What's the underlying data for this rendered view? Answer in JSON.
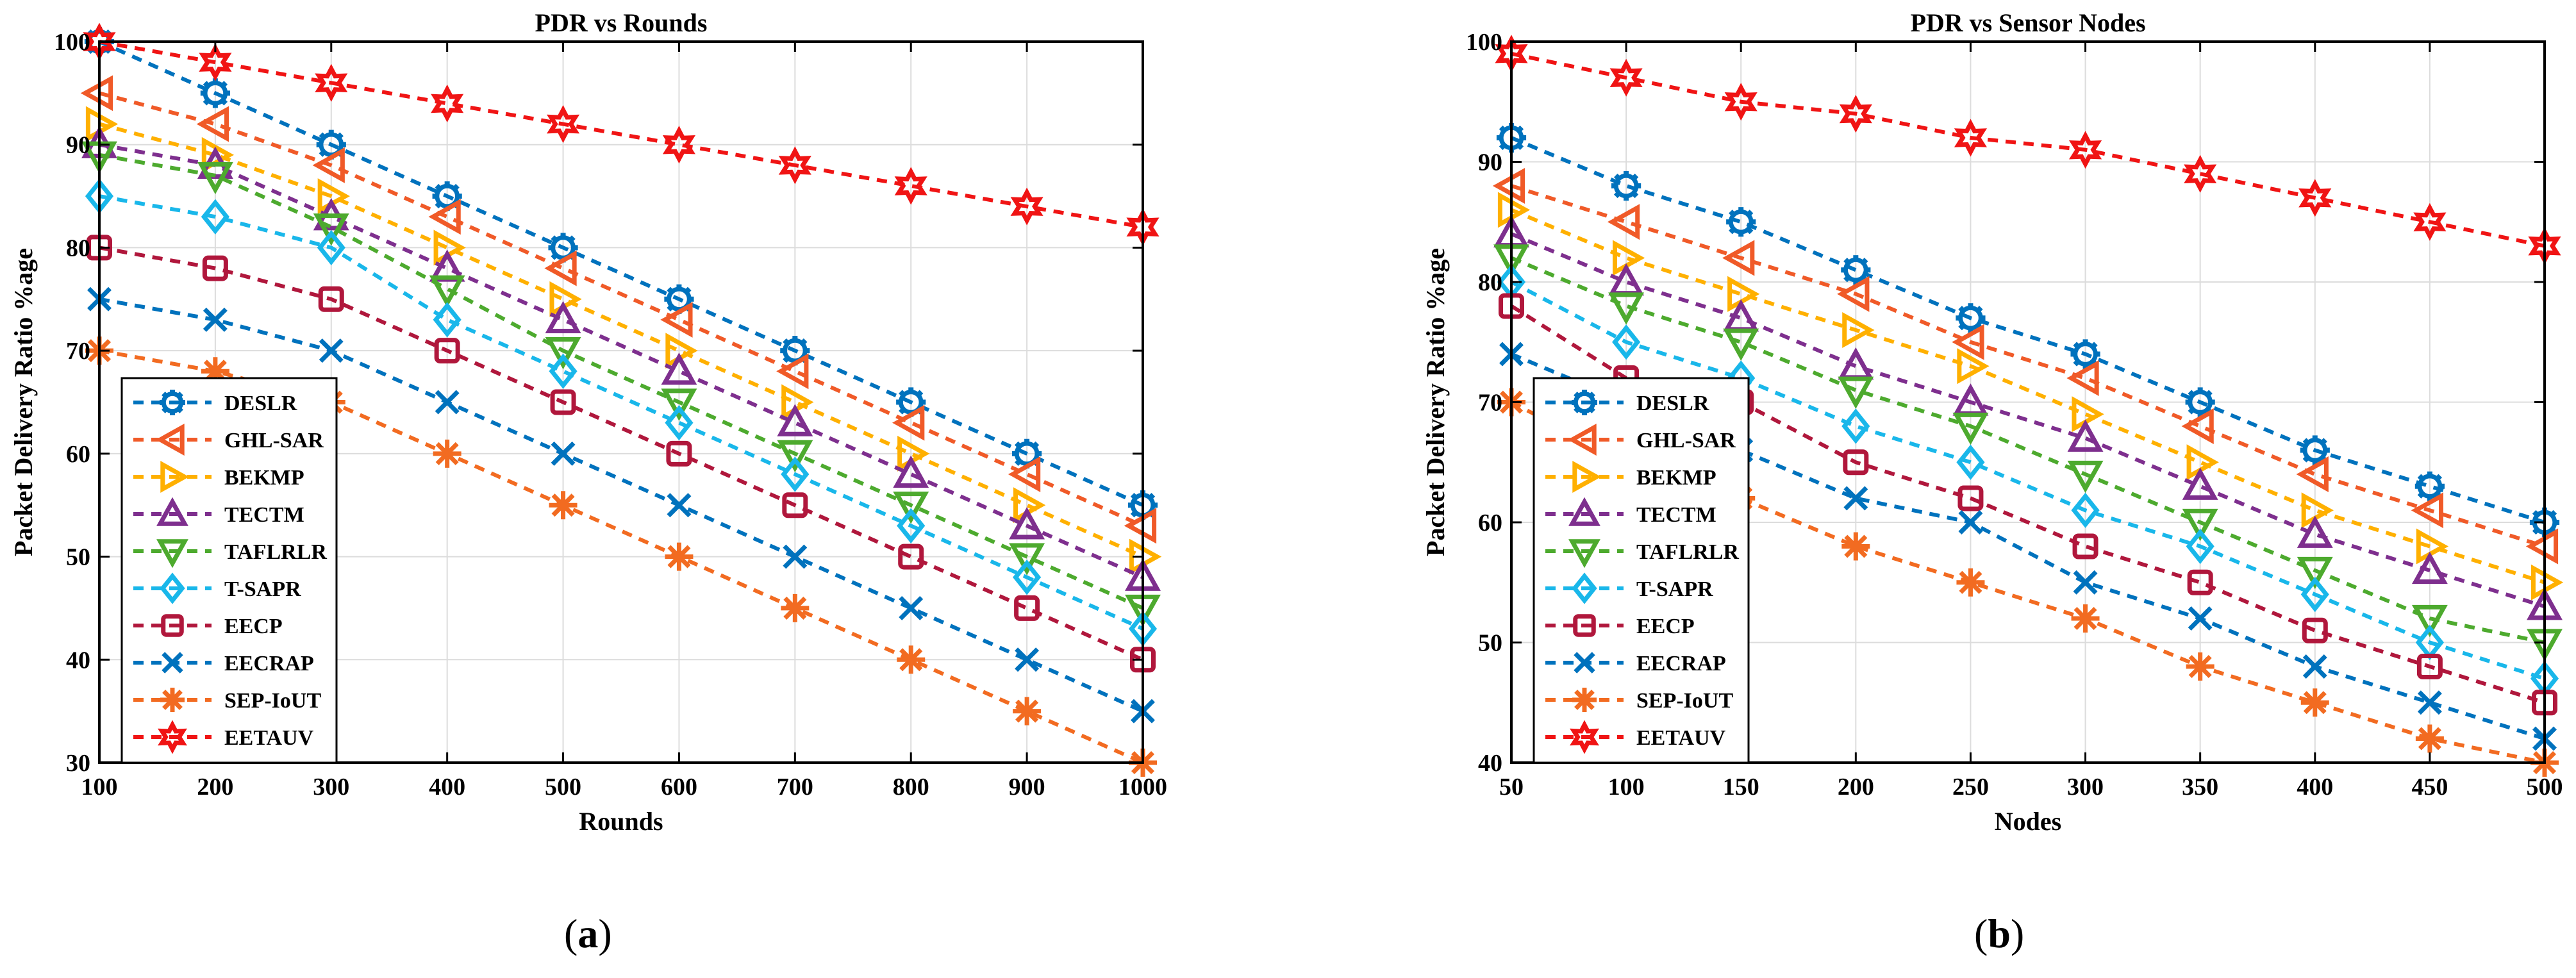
{
  "chart_data": [
    {
      "type": "line",
      "id": "a",
      "title": "PDR vs Rounds",
      "xlabel": "Rounds",
      "ylabel": "Packet Delivery Ratio %age",
      "xlim": [
        100,
        1000
      ],
      "ylim": [
        30,
        100
      ],
      "xticks": [
        100,
        200,
        300,
        400,
        500,
        600,
        700,
        800,
        900,
        1000
      ],
      "yticks": [
        30,
        40,
        50,
        60,
        70,
        80,
        90,
        100
      ],
      "grid": true,
      "legend_position": "bottom-left",
      "caption_letter": "a",
      "x": [
        100,
        200,
        300,
        400,
        500,
        600,
        700,
        800,
        900,
        1000
      ],
      "series": [
        {
          "name": "DESLR",
          "color": "#0072BD",
          "marker": "gear",
          "values": [
            100,
            95,
            90,
            85,
            80,
            75,
            70,
            65,
            60,
            55
          ]
        },
        {
          "name": "GHL-SAR",
          "color": "#F05A28",
          "marker": "tri-left",
          "values": [
            95,
            92,
            88,
            83,
            78,
            73,
            68,
            63,
            58,
            53
          ]
        },
        {
          "name": "BEKMP",
          "color": "#FFB000",
          "marker": "tri-right",
          "values": [
            92,
            89,
            85,
            80,
            75,
            70,
            65,
            60,
            55,
            50
          ]
        },
        {
          "name": "TECTM",
          "color": "#7E2F8E",
          "marker": "tri-up",
          "values": [
            90,
            88,
            83,
            78,
            73,
            68,
            63,
            58,
            53,
            48
          ]
        },
        {
          "name": "TAFLRLR",
          "color": "#4DAA2E",
          "marker": "tri-down",
          "values": [
            89,
            87,
            82,
            76,
            70,
            65,
            60,
            55,
            50,
            45
          ]
        },
        {
          "name": "T-SAPR",
          "color": "#19B7EA",
          "marker": "diamond",
          "values": [
            85,
            83,
            80,
            73,
            68,
            63,
            58,
            53,
            48,
            43
          ]
        },
        {
          "name": "EECP",
          "color": "#B0173C",
          "marker": "square",
          "values": [
            80,
            78,
            75,
            70,
            65,
            60,
            55,
            50,
            45,
            40
          ]
        },
        {
          "name": "EECRAP",
          "color": "#0072BD",
          "marker": "x",
          "values": [
            75,
            73,
            70,
            65,
            60,
            55,
            50,
            45,
            40,
            35
          ]
        },
        {
          "name": "SEP-IoUT",
          "color": "#F26B21",
          "marker": "asterisk",
          "values": [
            70,
            68,
            65,
            60,
            55,
            50,
            45,
            40,
            35,
            30
          ]
        },
        {
          "name": "EETAUV",
          "color": "#F01414",
          "marker": "star",
          "values": [
            100,
            98,
            96,
            94,
            92,
            90,
            88,
            86,
            84,
            82
          ]
        }
      ]
    },
    {
      "type": "line",
      "id": "b",
      "title": "PDR vs Sensor Nodes",
      "xlabel": "Nodes",
      "ylabel": "Packet Delivery Ratio %age",
      "xlim": [
        50,
        500
      ],
      "ylim": [
        40,
        100
      ],
      "xticks": [
        50,
        100,
        150,
        200,
        250,
        300,
        350,
        400,
        450,
        500
      ],
      "yticks": [
        40,
        50,
        60,
        70,
        80,
        90,
        100
      ],
      "grid": true,
      "legend_position": "bottom-left",
      "caption_letter": "b",
      "x": [
        50,
        100,
        150,
        200,
        250,
        300,
        350,
        400,
        450,
        500
      ],
      "series": [
        {
          "name": "DESLR",
          "color": "#0072BD",
          "marker": "gear",
          "values": [
            92,
            88,
            85,
            81,
            77,
            74,
            70,
            66,
            63,
            60
          ]
        },
        {
          "name": "GHL-SAR",
          "color": "#F05A28",
          "marker": "tri-left",
          "values": [
            88,
            85,
            82,
            79,
            75,
            72,
            68,
            64,
            61,
            58
          ]
        },
        {
          "name": "BEKMP",
          "color": "#FFB000",
          "marker": "tri-right",
          "values": [
            86,
            82,
            79,
            76,
            73,
            69,
            65,
            61,
            58,
            55
          ]
        },
        {
          "name": "TECTM",
          "color": "#7E2F8E",
          "marker": "tri-up",
          "values": [
            84,
            80,
            77,
            73,
            70,
            67,
            63,
            59,
            56,
            53
          ]
        },
        {
          "name": "TAFLRLR",
          "color": "#4DAA2E",
          "marker": "tri-down",
          "values": [
            82,
            78,
            75,
            71,
            68,
            64,
            60,
            56,
            52,
            50
          ]
        },
        {
          "name": "T-SAPR",
          "color": "#19B7EA",
          "marker": "diamond",
          "values": [
            80,
            75,
            72,
            68,
            65,
            61,
            58,
            54,
            50,
            47
          ]
        },
        {
          "name": "EECP",
          "color": "#B0173C",
          "marker": "square",
          "values": [
            78,
            72,
            70,
            65,
            62,
            58,
            55,
            51,
            48,
            45
          ]
        },
        {
          "name": "EECRAP",
          "color": "#0072BD",
          "marker": "x",
          "values": [
            74,
            70,
            66,
            62,
            60,
            55,
            52,
            48,
            45,
            42
          ]
        },
        {
          "name": "SEP-IoUT",
          "color": "#F26B21",
          "marker": "asterisk",
          "values": [
            70,
            65,
            62,
            58,
            55,
            52,
            48,
            45,
            42,
            40
          ]
        },
        {
          "name": "EETAUV",
          "color": "#F01414",
          "marker": "star",
          "values": [
            99,
            97,
            95,
            94,
            92,
            91,
            89,
            87,
            85,
            83
          ]
        }
      ]
    }
  ]
}
